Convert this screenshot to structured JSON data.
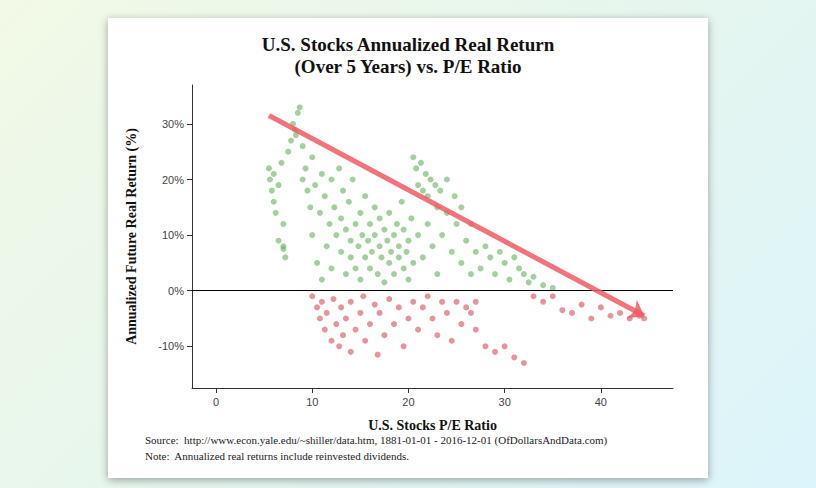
{
  "chart_data": {
    "type": "scatter",
    "title": "U.S. Stocks Annualized Real Return\n(Over 5 Years) vs. P/E Ratio",
    "x_label": "U.S. Stocks P/E Ratio",
    "y_label": "Annualized Future Real Return (%)",
    "annotations": [
      "Source:  http://www.econ.yale.edu/~shiller/data.htm, 1881-01-01 - 2016-12-01 (OfDollarsAndData.com)",
      "Note:  Annualized real returns include reinvested dividends."
    ],
    "xlim": [
      -2.5,
      47.5
    ],
    "ylim": [
      -17.5,
      37
    ],
    "xticks": [
      0,
      10,
      20,
      30,
      40
    ],
    "yticks": [
      {
        "value": -10,
        "label": "-10%"
      },
      {
        "value": 0,
        "label": "0%"
      },
      {
        "value": 10,
        "label": "10%"
      },
      {
        "value": 20,
        "label": "20%"
      },
      {
        "value": 30,
        "label": "30%"
      }
    ],
    "grid": false,
    "hline": 0,
    "arrow": {
      "x": [
        5.5,
        44.5
      ],
      "y": [
        31.5,
        -4.5
      ],
      "color": "#f05a64"
    },
    "series": [
      {
        "color": "#5aa850",
        "x": [
          5.5,
          5.6,
          5.8,
          6,
          6,
          6.2,
          6.5,
          6.8,
          7,
          7,
          7.2,
          7.5,
          7.8,
          8,
          8.2,
          8.5,
          8.7,
          8.3,
          9,
          9,
          9.3,
          9.5,
          9.8,
          10,
          10,
          10.3,
          10.5,
          10.8,
          11,
          11,
          11.3,
          11.5,
          11.8,
          12,
          12,
          12.3,
          12.5,
          12.8,
          13,
          13,
          13.2,
          13.5,
          13.5,
          13.8,
          14,
          14,
          14.2,
          14.5,
          14.5,
          14.8,
          15,
          15,
          15.2,
          15.5,
          15.5,
          15.8,
          16,
          16,
          16.2,
          16.5,
          16.5,
          16.8,
          17,
          17,
          17.2,
          17.5,
          17.5,
          17.8,
          18,
          18,
          18.2,
          18.5,
          18.5,
          18.8,
          19,
          19,
          19.3,
          19.5,
          19.5,
          19.8,
          20,
          20,
          20.3,
          20.5,
          20.5,
          20.8,
          21,
          21,
          21.3,
          21.5,
          21.5,
          21.8,
          22,
          22,
          22.3,
          22.5,
          22.8,
          23,
          23,
          23.3,
          23.5,
          24,
          24,
          24.5,
          24.8,
          25,
          25.5,
          25.5,
          26,
          26.5,
          26.5,
          27,
          27.5,
          28,
          28.5,
          29,
          29.5,
          30,
          30.5,
          31,
          31.5,
          32,
          32.5,
          33,
          34,
          35,
          6.5,
          7
        ],
        "values": [
          22,
          20,
          18,
          16,
          21,
          14,
          19,
          23,
          8,
          12,
          6,
          25,
          27,
          30,
          29,
          32,
          33,
          28,
          26,
          20,
          22,
          18,
          15,
          24,
          10,
          19,
          5,
          14,
          21,
          2,
          17,
          8,
          12,
          20,
          4,
          15,
          10,
          22,
          7,
          13,
          18,
          3,
          11,
          16,
          6,
          9,
          20,
          12,
          4,
          8,
          14,
          2,
          10,
          6,
          17,
          9,
          12,
          4,
          7,
          10,
          15,
          3,
          8,
          13,
          6,
          11,
          1.5,
          9,
          5,
          14,
          7,
          10,
          3,
          12,
          6,
          8,
          16,
          4,
          11,
          7,
          9,
          2,
          13,
          5,
          24,
          22,
          19,
          10,
          23,
          18,
          6,
          21,
          17,
          12,
          20,
          8,
          19,
          15,
          3,
          18,
          10,
          20,
          14,
          7,
          17,
          12,
          15,
          5,
          9,
          12,
          3,
          7,
          4,
          8,
          6,
          3,
          7,
          5,
          2,
          6,
          4,
          3,
          1.5,
          2.5,
          1,
          0.5,
          9,
          7.5
        ]
      },
      {
        "color": "#d03c48",
        "x": [
          10,
          10.5,
          10.8,
          11,
          11.3,
          11.5,
          12,
          12.2,
          12.5,
          12.8,
          13,
          13.2,
          13.5,
          14,
          14,
          14.5,
          15,
          15.3,
          15.5,
          16,
          16.5,
          16.8,
          17,
          17.5,
          18,
          18.5,
          19,
          19.5,
          20,
          20.5,
          21,
          21.5,
          22,
          22.5,
          23,
          23.5,
          24,
          24.5,
          25,
          25.5,
          26,
          26.5,
          27,
          27,
          28,
          29,
          30,
          31,
          32,
          33,
          34,
          35,
          36,
          37,
          38,
          39,
          40,
          41,
          42,
          43,
          44,
          44.5
        ],
        "values": [
          -1,
          -3,
          -5,
          -2,
          -7,
          -4,
          -9,
          -1.5,
          -6,
          -10,
          -3,
          -8,
          -5,
          -2,
          -11,
          -7,
          -4,
          -1,
          -9,
          -6,
          -2.5,
          -11.5,
          -4,
          -8,
          -1.5,
          -6,
          -3,
          -10,
          -5,
          -2,
          -7,
          -3,
          -1,
          -5,
          -8,
          -2,
          -4,
          -9,
          -2,
          -6,
          -3,
          -4,
          -7,
          -2,
          -10,
          -11,
          -10,
          -12,
          -13,
          -1,
          -2,
          -1,
          -3.5,
          -4,
          -2.5,
          -5,
          -3,
          -4.5,
          -4,
          -5,
          -4.5,
          -5
        ]
      }
    ]
  }
}
